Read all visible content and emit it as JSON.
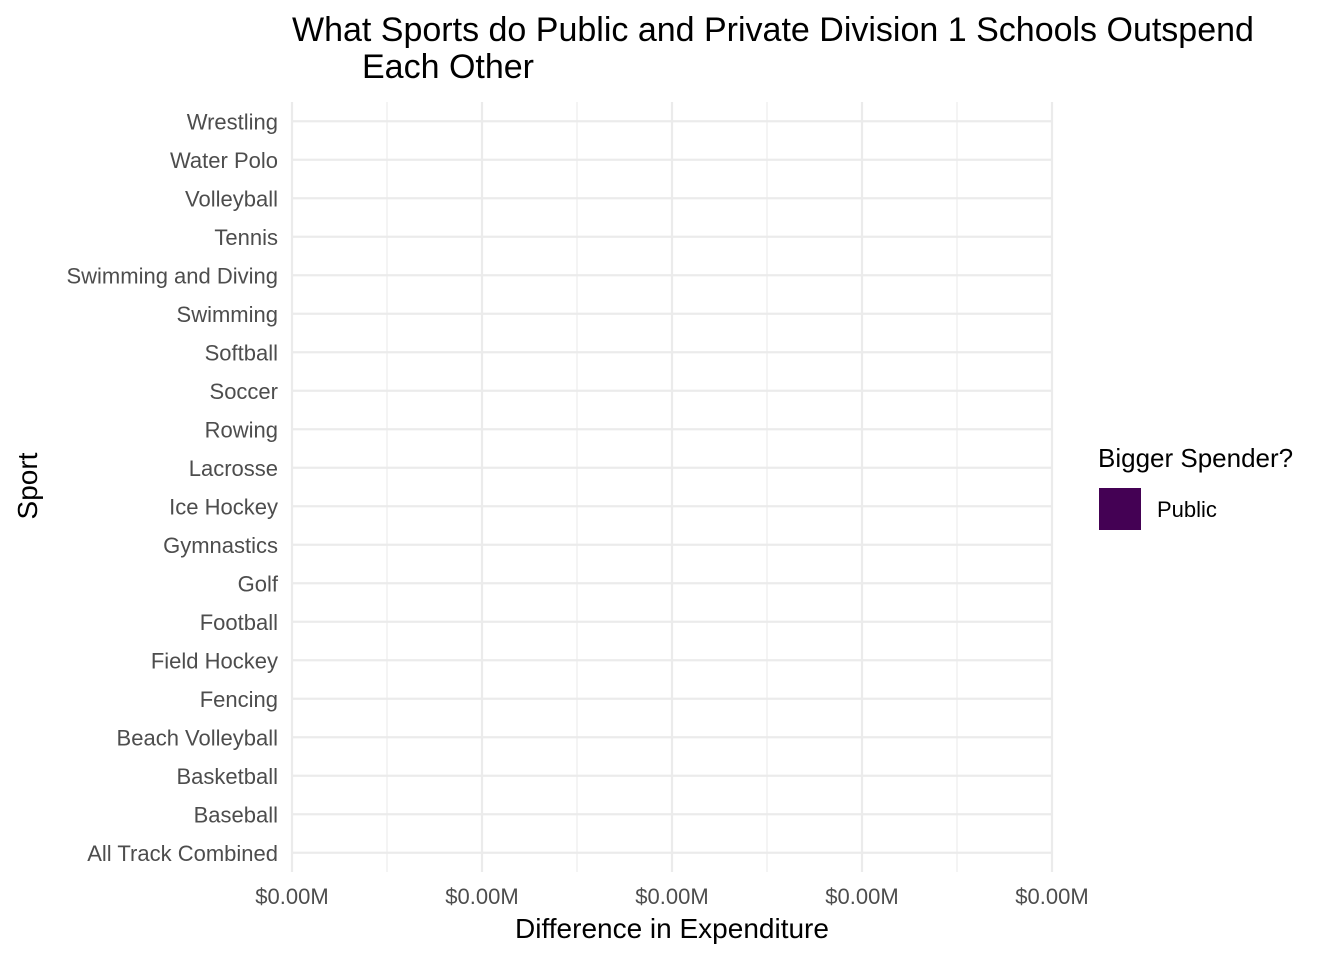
{
  "chart_data": {
    "type": "bar",
    "orientation": "horizontal",
    "title_lines": [
      "What Sports do Public and Private Division 1 Schools Outspend",
      "Each Other"
    ],
    "xlabel": "Difference in Expenditure",
    "ylabel": "Sport",
    "categories": [
      "All Track Combined",
      "Baseball",
      "Basketball",
      "Beach Volleyball",
      "Fencing",
      "Field Hockey",
      "Football",
      "Golf",
      "Gymnastics",
      "Ice Hockey",
      "Lacrosse",
      "Rowing",
      "Soccer",
      "Softball",
      "Swimming",
      "Swimming and Diving",
      "Tennis",
      "Volleyball",
      "Water Polo",
      "Wrestling"
    ],
    "series": [
      {
        "name": "Public",
        "color": "#440154",
        "values": [
          0,
          0,
          0,
          0,
          0,
          0,
          0,
          0,
          0,
          0,
          0,
          0,
          0,
          0,
          0,
          0,
          0,
          0,
          0,
          0
        ]
      }
    ],
    "x_ticks": [
      {
        "value": 0,
        "label": "$0.00M"
      },
      {
        "value": 0.001,
        "label": "$0.00M"
      },
      {
        "value": 0.002,
        "label": "$0.00M"
      },
      {
        "value": 0.003,
        "label": "$0.00M"
      },
      {
        "value": 0.004,
        "label": "$0.00M"
      }
    ],
    "xlim": [
      0,
      0.004
    ],
    "grid": true,
    "legend": {
      "title": "Bigger Spender?",
      "position": "right",
      "items": [
        {
          "label": "Public",
          "color": "#440154"
        }
      ]
    }
  }
}
